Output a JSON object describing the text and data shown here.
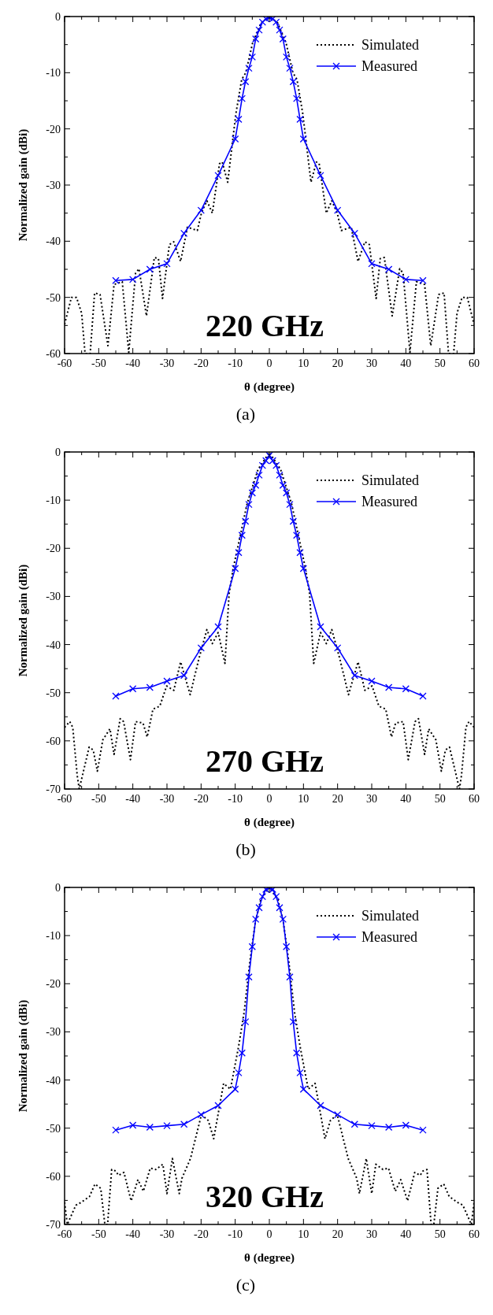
{
  "chart_data": [
    {
      "type": "line",
      "xlabel": "θ (degree)",
      "ylabel": "Normalized gain (dBi)",
      "annotations": [
        "220 GHz",
        "(a)"
      ],
      "xlim": [
        -60,
        60
      ],
      "ylim": [
        -60,
        0
      ],
      "xticks": [
        -60,
        -50,
        -40,
        -30,
        -20,
        -10,
        0,
        10,
        20,
        30,
        40,
        50,
        60
      ],
      "yticks": [
        -60,
        -50,
        -40,
        -30,
        -20,
        -10,
        0
      ],
      "legend": "top right",
      "series": [
        {
          "name": "Simulated",
          "color": "#000000",
          "line_style": "dotted",
          "marker": "none",
          "x": [
            -60,
            -58,
            -56.5,
            -55,
            -54,
            -52.5,
            -51.2,
            -49.6,
            -47.3,
            -45.5,
            -43.1,
            -41.2,
            -39.2,
            -38.2,
            -36,
            -33.7,
            -32.5,
            -31.3,
            -29.3,
            -28,
            -26,
            -24,
            -21.1,
            -19.9,
            -18.3,
            -16.7,
            -14.6,
            -13.8,
            -12.2,
            -11,
            -9.8,
            -8.1,
            -6.9,
            -4.9,
            -2.4,
            0,
            2.4,
            4.9,
            6.9,
            8.1,
            9.8,
            11,
            12.2,
            13.8,
            14.6,
            16.7,
            18.3,
            19.9,
            21.1,
            24,
            26,
            28,
            29.3,
            31.3,
            32.5,
            33.7,
            36,
            38.2,
            39.2,
            41.2,
            43.1,
            45.5,
            47.3,
            49.6,
            51.2,
            52.5,
            54,
            55,
            56.5,
            58,
            60
          ],
          "values": [
            -54.8,
            -50,
            -50,
            -52.8,
            -60,
            -60,
            -49.2,
            -49.5,
            -58.6,
            -47.7,
            -47.2,
            -59.8,
            -45.7,
            -44.9,
            -53.3,
            -42.9,
            -43.1,
            -50.2,
            -40.6,
            -40.1,
            -43.6,
            -37.5,
            -38.1,
            -35,
            -32.8,
            -35,
            -26.2,
            -25.9,
            -29.5,
            -23.4,
            -17.3,
            -11.2,
            -10,
            -4.7,
            -1.1,
            0,
            -1.1,
            -4.7,
            -10,
            -11.2,
            -17.3,
            -23.4,
            -29.5,
            -25.9,
            -26.2,
            -35,
            -32.8,
            -35,
            -38.1,
            -37.5,
            -43.6,
            -40.1,
            -40.6,
            -50.2,
            -43.1,
            -42.9,
            -53.3,
            -44.9,
            -45.7,
            -59.8,
            -47.2,
            -47.7,
            -58.6,
            -49.5,
            -49.2,
            -60,
            -60,
            -52.8,
            -50,
            -50,
            -54.8
          ]
        },
        {
          "name": "Measured",
          "color": "#0000ff",
          "line_style": "solid",
          "marker": "cross",
          "x": [
            -45,
            -40,
            -35,
            -30,
            -25,
            -20,
            -15,
            -10,
            -9,
            -8,
            -7,
            -6,
            -5,
            -4,
            -3,
            -2,
            -1,
            0,
            1,
            2,
            3,
            4,
            5,
            6,
            7,
            8,
            9,
            10,
            15,
            20,
            25,
            30,
            35,
            40,
            45
          ],
          "values": [
            -47,
            -46.8,
            -45,
            -44,
            -38.6,
            -34.5,
            -28.3,
            -21.8,
            -18.3,
            -14.6,
            -11.6,
            -9.2,
            -7.2,
            -4,
            -2.4,
            -1,
            -0.4,
            -0.2,
            -0.4,
            -1,
            -2.4,
            -4,
            -7.2,
            -9.2,
            -11.6,
            -14.6,
            -18.3,
            -21.8,
            -28.3,
            -34.5,
            -38.6,
            -44,
            -45,
            -46.8,
            -47
          ]
        }
      ]
    },
    {
      "type": "line",
      "xlabel": "θ (degree)",
      "ylabel": "Normalized gain (dBi)",
      "annotations": [
        "270 GHz",
        "(b)"
      ],
      "xlim": [
        -60,
        60
      ],
      "ylim": [
        -70,
        0
      ],
      "xticks": [
        -60,
        -50,
        -40,
        -30,
        -20,
        -10,
        0,
        10,
        20,
        30,
        40,
        50,
        60
      ],
      "yticks": [
        -70,
        -60,
        -50,
        -40,
        -30,
        -20,
        -10,
        0
      ],
      "legend": "top right",
      "series": [
        {
          "name": "Simulated",
          "color": "#000000",
          "line_style": "dotted",
          "marker": "none",
          "x": [
            -60,
            -58.5,
            -57.6,
            -56.3,
            -55.7,
            -52.8,
            -51.6,
            -50.4,
            -48.8,
            -46.7,
            -45.5,
            -43.7,
            -42.7,
            -40.7,
            -39.2,
            -37,
            -35.8,
            -34.1,
            -32.1,
            -30.1,
            -28,
            -26,
            -23.2,
            -20.7,
            -18.3,
            -16.7,
            -15,
            -13,
            -11.8,
            -10.6,
            -8.1,
            -6.5,
            -3.3,
            0,
            3.3,
            6.5,
            8.1,
            10.6,
            11.8,
            13,
            15,
            16.7,
            18.3,
            20.7,
            23.2,
            26,
            28,
            30.1,
            32.1,
            34.1,
            35.8,
            37,
            39.2,
            40.7,
            42.7,
            43.7,
            45.5,
            46.7,
            48.8,
            50.4,
            51.6,
            52.8,
            55.7,
            56.3,
            57.6,
            58.5,
            60
          ],
          "values": [
            -57.2,
            -56,
            -57.2,
            -67.2,
            -70,
            -61.3,
            -61.9,
            -66.3,
            -59.8,
            -57.5,
            -62.8,
            -55.4,
            -56,
            -63.9,
            -56,
            -56.3,
            -59.2,
            -53.4,
            -52.8,
            -48.6,
            -49.5,
            -43.6,
            -50.4,
            -43.1,
            -36.9,
            -39.8,
            -37.5,
            -43.9,
            -29.5,
            -24.2,
            -16,
            -10.7,
            -3.6,
            -0.1,
            -3.6,
            -10.7,
            -16,
            -24.2,
            -29.5,
            -43.9,
            -37.5,
            -39.8,
            -36.9,
            -43.1,
            -50.4,
            -43.6,
            -49.5,
            -48.6,
            -52.8,
            -53.4,
            -59.2,
            -56.3,
            -56,
            -63.9,
            -56,
            -55.4,
            -62.8,
            -57.5,
            -59.8,
            -66.3,
            -61.9,
            -61.3,
            -70,
            -67.2,
            -57.2,
            -56,
            -57.2
          ]
        },
        {
          "name": "Measured",
          "color": "#0000ff",
          "line_style": "solid",
          "marker": "cross",
          "x": [
            -45,
            -40,
            -35,
            -30,
            -25,
            -20,
            -15,
            -10,
            -9,
            -8,
            -7,
            -6,
            -5,
            -4,
            -3,
            -2,
            -1,
            0,
            1,
            2,
            3,
            4,
            5,
            6,
            7,
            8,
            9,
            10,
            15,
            20,
            25,
            30,
            35,
            40,
            45
          ],
          "values": [
            -50.7,
            -49.2,
            -48.9,
            -47.6,
            -46.4,
            -40.7,
            -36.3,
            -24.2,
            -20.9,
            -17.3,
            -14.4,
            -10.9,
            -8.5,
            -6.9,
            -4.8,
            -2.8,
            -1.8,
            -0.7,
            -1.8,
            -2.8,
            -4.8,
            -6.9,
            -8.5,
            -10.9,
            -14.4,
            -17.3,
            -20.9,
            -24.2,
            -36.3,
            -40.7,
            -46.4,
            -47.6,
            -48.9,
            -49.2,
            -50.7
          ]
        }
      ]
    },
    {
      "type": "line",
      "xlabel": "θ (degree)",
      "ylabel": "Normalized gain (dBi)",
      "annotations": [
        "320 GHz",
        "(c)"
      ],
      "xlim": [
        -60,
        60
      ],
      "ylim": [
        -70,
        0
      ],
      "xticks": [
        -60,
        -50,
        -40,
        -30,
        -20,
        -10,
        0,
        10,
        20,
        30,
        40,
        50,
        60
      ],
      "yticks": [
        -70,
        -60,
        -50,
        -40,
        -30,
        -20,
        -10,
        0
      ],
      "legend": "top right",
      "series": [
        {
          "name": "Simulated",
          "color": "#000000",
          "line_style": "dotted",
          "marker": "none",
          "x": [
            -60,
            -59.2,
            -56.7,
            -55.1,
            -52.7,
            -51.1,
            -49.4,
            -48.2,
            -47.4,
            -46.2,
            -45,
            -44.2,
            -42.6,
            -40.5,
            -38.5,
            -36.9,
            -34.9,
            -33.3,
            -31.2,
            -30,
            -28.4,
            -26.4,
            -25.6,
            -23.1,
            -19.9,
            -17.9,
            -16.3,
            -13.4,
            -11.4,
            -9,
            -7.4,
            -5.7,
            -4.1,
            -2.5,
            0,
            2.5,
            4.1,
            5.7,
            7.4,
            9,
            11.4,
            13.4,
            16.3,
            17.9,
            19.9,
            23.1,
            25.6,
            26.4,
            28.4,
            30,
            31.2,
            33.3,
            34.9,
            36.9,
            38.5,
            40.5,
            42.6,
            44.2,
            45,
            46.2,
            47.4,
            48.2,
            49.4,
            51.1,
            52.7,
            55.1,
            56.7,
            59.2,
            60
          ],
          "values": [
            -65.4,
            -70,
            -66,
            -65.4,
            -64.2,
            -61.6,
            -62.5,
            -70,
            -70,
            -58.6,
            -58.9,
            -59.8,
            -59.2,
            -65.1,
            -60.7,
            -63.1,
            -58.3,
            -58.6,
            -57.5,
            -63.6,
            -56.3,
            -63.6,
            -60.4,
            -56.3,
            -47.2,
            -48.4,
            -52.2,
            -40.7,
            -41.9,
            -33,
            -26,
            -15.4,
            -7.2,
            -2.5,
            0,
            -2.5,
            -7.2,
            -15.4,
            -26,
            -33,
            -41.9,
            -40.7,
            -52.2,
            -48.4,
            -47.2,
            -56.3,
            -60.4,
            -63.6,
            -56.3,
            -63.6,
            -57.5,
            -58.6,
            -58.3,
            -63.1,
            -60.7,
            -65.1,
            -59.2,
            -59.8,
            -58.9,
            -58.6,
            -70,
            -70,
            -62.5,
            -61.6,
            -64.2,
            -65.4,
            -66,
            -70,
            -65.4
          ]
        },
        {
          "name": "Measured",
          "color": "#0000ff",
          "line_style": "solid",
          "marker": "cross",
          "x": [
            -45,
            -40,
            -35,
            -30,
            -25,
            -20,
            -15,
            -10,
            -9,
            -8,
            -7,
            -6,
            -5,
            -4,
            -3,
            -2,
            -1,
            0,
            1,
            2,
            3,
            4,
            5,
            6,
            7,
            8,
            9,
            10,
            15,
            20,
            25,
            30,
            35,
            40,
            45
          ],
          "values": [
            -50.4,
            -49.4,
            -49.8,
            -49.5,
            -49.2,
            -47.2,
            -45.3,
            -41.9,
            -38.5,
            -34.4,
            -27.9,
            -18.6,
            -12.3,
            -6.6,
            -4.2,
            -1.9,
            -0.4,
            -0.1,
            -0.4,
            -1.9,
            -4.2,
            -6.6,
            -12.3,
            -18.6,
            -27.9,
            -34.4,
            -38.5,
            -41.9,
            -45.3,
            -47.2,
            -49.2,
            -49.5,
            -49.8,
            -49.4,
            -50.4
          ]
        }
      ]
    }
  ]
}
